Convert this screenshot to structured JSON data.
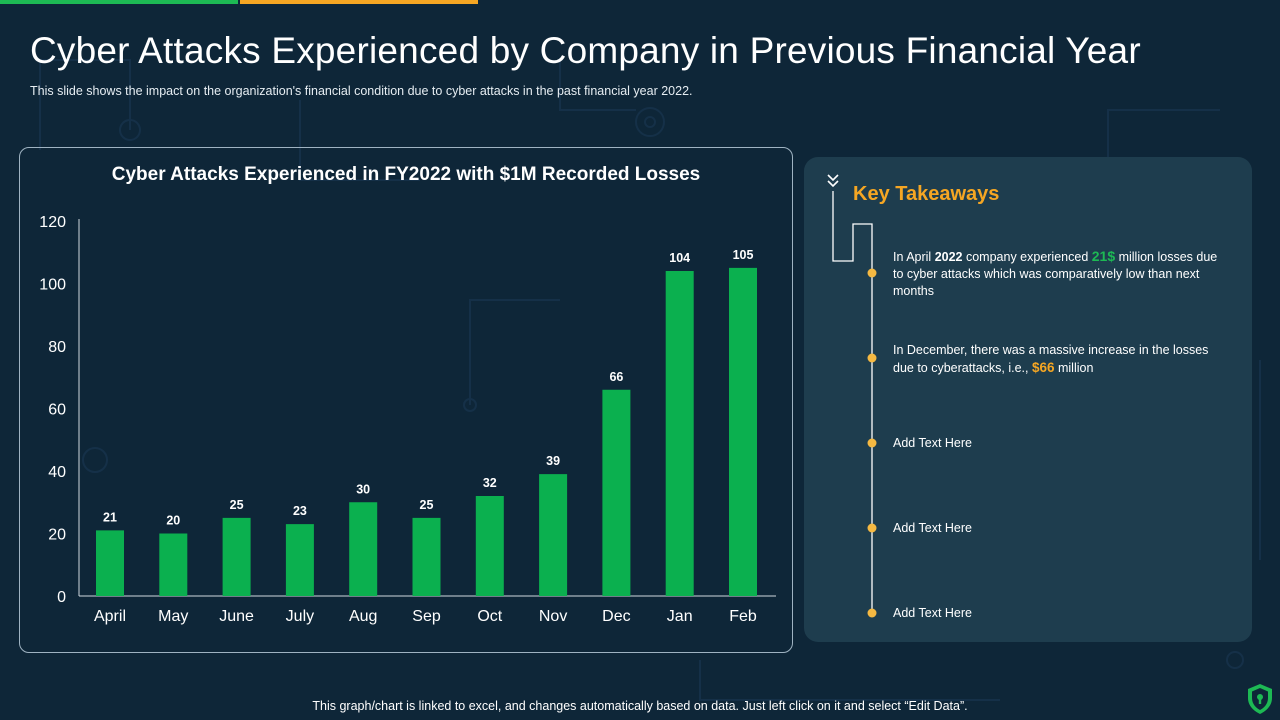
{
  "header": {
    "title": "Cyber Attacks Experienced by Company in Previous Financial Year",
    "subtitle": "This slide shows the impact on the organization's financial condition due to cyber attacks in the past financial year 2022."
  },
  "colors": {
    "background": "#0e2638",
    "bar": "#0bb04f",
    "accent_green": "#1db954",
    "accent_orange": "#f5a623",
    "panel": "#1e3d4e"
  },
  "chart_data": {
    "type": "bar",
    "title": "Cyber Attacks Experienced in FY2022 with $1M Recorded Losses",
    "categories": [
      "April",
      "May",
      "June",
      "July",
      "Aug",
      "Sep",
      "Oct",
      "Nov",
      "Dec",
      "Jan",
      "Feb"
    ],
    "values": [
      21,
      20,
      25,
      23,
      30,
      25,
      32,
      39,
      66,
      104,
      105
    ],
    "ylim": [
      0,
      120
    ],
    "yticks": [
      0,
      20,
      40,
      60,
      80,
      100,
      120
    ],
    "xlabel": "",
    "ylabel": "",
    "grid": false,
    "data_labels": true
  },
  "takeaways": {
    "title": "Key Takeaways",
    "items": [
      {
        "pre": "In April ",
        "bold": "2022",
        "mid": " company experienced ",
        "highlight": "21$",
        "post": " million losses due to cyber attacks which was comparatively  low than next months"
      },
      {
        "pre": "In December, there was a massive increase in the losses due to cyberattacks, i.e., ",
        "highlight": "$66",
        "post": " million"
      },
      {
        "text": "Add Text Here"
      },
      {
        "text": "Add Text Here"
      },
      {
        "text": "Add Text Here"
      }
    ]
  },
  "footer": {
    "note": "This graph/chart is linked to excel, and changes automatically based on data. Just left click on it and select “Edit Data”."
  },
  "icons": {
    "chevron": "double-chevron-down-icon",
    "logo": "shield-logo-icon"
  }
}
